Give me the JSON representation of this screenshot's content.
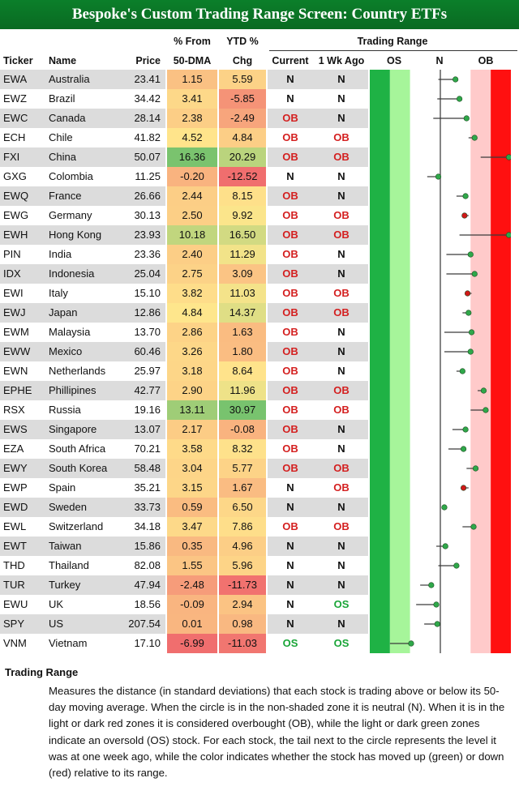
{
  "title": "Bespoke's Custom Trading Range Screen: Country ETFs",
  "headers": {
    "ticker": "Ticker",
    "name": "Name",
    "price": "Price",
    "pct50_line1": "% From",
    "pct50_line2": "50-DMA",
    "ytd_line1": "YTD %",
    "ytd_line2": "Chg",
    "trading_range": "Trading Range",
    "current": "Current",
    "wk_ago": "1 Wk Ago",
    "os": "OS",
    "n": "N",
    "ob": "OB"
  },
  "chart_data": {
    "type": "table",
    "title": "Bespoke's Custom Trading Range Screen: Country ETFs",
    "columns": [
      "Ticker",
      "Name",
      "Price",
      "% From 50-DMA",
      "YTD % Chg",
      "Current",
      "1 Wk Ago"
    ],
    "rows": [
      {
        "ticker": "EWA",
        "name": "Australia",
        "price": "23.41",
        "pct50": "1.15",
        "ytd": "5.59",
        "current": "N",
        "wk_ago": "N",
        "range_now": 0.75,
        "range_wk": -0.1,
        "direction": "up"
      },
      {
        "ticker": "EWZ",
        "name": "Brazil",
        "price": "34.42",
        "pct50": "3.41",
        "ytd": "-5.85",
        "current": "N",
        "wk_ago": "N",
        "range_now": 0.95,
        "range_wk": -0.15,
        "direction": "up"
      },
      {
        "ticker": "EWC",
        "name": "Canada",
        "price": "28.14",
        "pct50": "2.38",
        "ytd": "-2.49",
        "current": "OB",
        "wk_ago": "N",
        "range_now": 1.3,
        "range_wk": -0.35,
        "direction": "up"
      },
      {
        "ticker": "ECH",
        "name": "Chile",
        "price": "41.82",
        "pct50": "4.52",
        "ytd": "4.84",
        "current": "OB",
        "wk_ago": "OB",
        "range_now": 1.7,
        "range_wk": 1.4,
        "direction": "up"
      },
      {
        "ticker": "FXI",
        "name": "China",
        "price": "50.07",
        "pct50": "16.36",
        "ytd": "20.29",
        "current": "OB",
        "wk_ago": "OB",
        "range_now": 3.4,
        "range_wk": 2.0,
        "direction": "up"
      },
      {
        "ticker": "GXG",
        "name": "Colombia",
        "price": "11.25",
        "pct50": "-0.20",
        "ytd": "-12.52",
        "current": "N",
        "wk_ago": "N",
        "range_now": -0.1,
        "range_wk": -0.65,
        "direction": "up"
      },
      {
        "ticker": "EWQ",
        "name": "France",
        "price": "26.66",
        "pct50": "2.44",
        "ytd": "8.15",
        "current": "OB",
        "wk_ago": "N",
        "range_now": 1.25,
        "range_wk": 0.8,
        "direction": "up"
      },
      {
        "ticker": "EWG",
        "name": "Germany",
        "price": "30.13",
        "pct50": "2.50",
        "ytd": "9.92",
        "current": "OB",
        "wk_ago": "OB",
        "range_now": 1.2,
        "range_wk": 1.4,
        "direction": "down"
      },
      {
        "ticker": "EWH",
        "name": "Hong Kong",
        "price": "23.93",
        "pct50": "10.18",
        "ytd": "16.50",
        "current": "OB",
        "wk_ago": "OB",
        "range_now": 3.4,
        "range_wk": 0.95,
        "direction": "up"
      },
      {
        "ticker": "PIN",
        "name": "India",
        "price": "23.36",
        "pct50": "2.40",
        "ytd": "11.29",
        "current": "OB",
        "wk_ago": "N",
        "range_now": 1.5,
        "range_wk": 0.3,
        "direction": "up"
      },
      {
        "ticker": "IDX",
        "name": "Indonesia",
        "price": "25.04",
        "pct50": "2.75",
        "ytd": "3.09",
        "current": "OB",
        "wk_ago": "N",
        "range_now": 1.7,
        "range_wk": 0.3,
        "direction": "up"
      },
      {
        "ticker": "EWI",
        "name": "Italy",
        "price": "15.10",
        "pct50": "3.82",
        "ytd": "11.03",
        "current": "OB",
        "wk_ago": "OB",
        "range_now": 1.35,
        "range_wk": 1.55,
        "direction": "down"
      },
      {
        "ticker": "EWJ",
        "name": "Japan",
        "price": "12.86",
        "pct50": "4.84",
        "ytd": "14.37",
        "current": "OB",
        "wk_ago": "OB",
        "range_now": 1.4,
        "range_wk": 1.1,
        "direction": "up"
      },
      {
        "ticker": "EWM",
        "name": "Malaysia",
        "price": "13.70",
        "pct50": "2.86",
        "ytd": "1.63",
        "current": "OB",
        "wk_ago": "N",
        "range_now": 1.55,
        "range_wk": 0.2,
        "direction": "up"
      },
      {
        "ticker": "EWW",
        "name": "Mexico",
        "price": "60.46",
        "pct50": "3.26",
        "ytd": "1.80",
        "current": "OB",
        "wk_ago": "N",
        "range_now": 1.5,
        "range_wk": 0.2,
        "direction": "up"
      },
      {
        "ticker": "EWN",
        "name": "Netherlands",
        "price": "25.97",
        "pct50": "3.18",
        "ytd": "8.64",
        "current": "OB",
        "wk_ago": "N",
        "range_now": 1.1,
        "range_wk": 0.8,
        "direction": "up"
      },
      {
        "ticker": "EPHE",
        "name": "Phillipines",
        "price": "42.77",
        "pct50": "2.90",
        "ytd": "11.96",
        "current": "OB",
        "wk_ago": "OB",
        "range_now": 2.15,
        "range_wk": 1.85,
        "direction": "up"
      },
      {
        "ticker": "RSX",
        "name": "Russia",
        "price": "19.16",
        "pct50": "13.11",
        "ytd": "30.97",
        "current": "OB",
        "wk_ago": "OB",
        "range_now": 2.25,
        "range_wk": 1.5,
        "direction": "up"
      },
      {
        "ticker": "EWS",
        "name": "Singapore",
        "price": "13.07",
        "pct50": "2.17",
        "ytd": "-0.08",
        "current": "OB",
        "wk_ago": "N",
        "range_now": 1.25,
        "range_wk": 0.6,
        "direction": "up"
      },
      {
        "ticker": "EZA",
        "name": "South Africa",
        "price": "70.21",
        "pct50": "3.58",
        "ytd": "8.32",
        "current": "OB",
        "wk_ago": "N",
        "range_now": 1.15,
        "range_wk": 0.4,
        "direction": "up"
      },
      {
        "ticker": "EWY",
        "name": "South Korea",
        "price": "58.48",
        "pct50": "3.04",
        "ytd": "5.77",
        "current": "OB",
        "wk_ago": "OB",
        "range_now": 1.75,
        "range_wk": 1.3,
        "direction": "up"
      },
      {
        "ticker": "EWP",
        "name": "Spain",
        "price": "35.21",
        "pct50": "3.15",
        "ytd": "1.67",
        "current": "N",
        "wk_ago": "OB",
        "range_now": 1.15,
        "range_wk": 1.4,
        "direction": "down"
      },
      {
        "ticker": "EWD",
        "name": "Sweden",
        "price": "33.73",
        "pct50": "0.59",
        "ytd": "6.50",
        "current": "N",
        "wk_ago": "N",
        "range_now": 0.2,
        "range_wk": 0.15,
        "direction": "up"
      },
      {
        "ticker": "EWL",
        "name": "Switzerland",
        "price": "34.18",
        "pct50": "3.47",
        "ytd": "7.86",
        "current": "OB",
        "wk_ago": "OB",
        "range_now": 1.65,
        "range_wk": 1.1,
        "direction": "up"
      },
      {
        "ticker": "EWT",
        "name": "Taiwan",
        "price": "15.86",
        "pct50": "0.35",
        "ytd": "4.96",
        "current": "N",
        "wk_ago": "N",
        "range_now": 0.25,
        "range_wk": -0.2,
        "direction": "up"
      },
      {
        "ticker": "THD",
        "name": "Thailand",
        "price": "82.08",
        "pct50": "1.55",
        "ytd": "5.96",
        "current": "N",
        "wk_ago": "N",
        "range_now": 0.8,
        "range_wk": -0.1,
        "direction": "up"
      },
      {
        "ticker": "TUR",
        "name": "Turkey",
        "price": "47.94",
        "pct50": "-2.48",
        "ytd": "-11.73",
        "current": "N",
        "wk_ago": "N",
        "range_now": -0.45,
        "range_wk": -1.0,
        "direction": "up"
      },
      {
        "ticker": "EWU",
        "name": "UK",
        "price": "18.56",
        "pct50": "-0.09",
        "ytd": "2.94",
        "current": "N",
        "wk_ago": "OS",
        "range_now": -0.2,
        "range_wk": -1.2,
        "direction": "up"
      },
      {
        "ticker": "SPY",
        "name": "US",
        "price": "207.54",
        "pct50": "0.01",
        "ytd": "0.98",
        "current": "N",
        "wk_ago": "N",
        "range_now": -0.15,
        "range_wk": -0.8,
        "direction": "up"
      },
      {
        "ticker": "VNM",
        "name": "Vietnam",
        "price": "17.10",
        "pct50": "-6.99",
        "ytd": "-11.03",
        "current": "OS",
        "wk_ago": "OS",
        "range_now": -1.45,
        "range_wk": -2.5,
        "direction": "up"
      }
    ],
    "range_axis": {
      "min": -3.5,
      "max": 3.5,
      "zones": {
        "os_dark": [
          -3.5,
          -2.5
        ],
        "os_light": [
          -2.5,
          -1.5
        ],
        "neutral": [
          -1.5,
          1.5
        ],
        "ob_light": [
          1.5,
          2.5
        ],
        "ob_dark": [
          2.5,
          3.5
        ]
      }
    }
  },
  "colors": {
    "title_bg": "#0a6a22",
    "os_dark": "#1fb245",
    "os_light": "#a6f59a",
    "ob_light": "#ffcaca",
    "ob_dark": "#ff1010",
    "stripe": "#dcdcdc",
    "dot_up": "#2fa84a",
    "dot_down": "#d01818",
    "flag_ob": "#d42020",
    "flag_os": "#1aa538"
  },
  "note": {
    "title": "Trading Range",
    "body": "Measures the distance (in standard deviations) that each stock is trading above or below its 50-day moving average.  When the circle is in the non-shaded zone it is neutral (N).  When it is in the light or dark red zones it is considered overbought (OB), while the light or dark green zones indicate an oversold (OS) stock.  For each stock, the tail next to the circle represents the level it was at one week ago, while the color indicates whether the stock has moved up (green) or down (red) relative to its range."
  }
}
